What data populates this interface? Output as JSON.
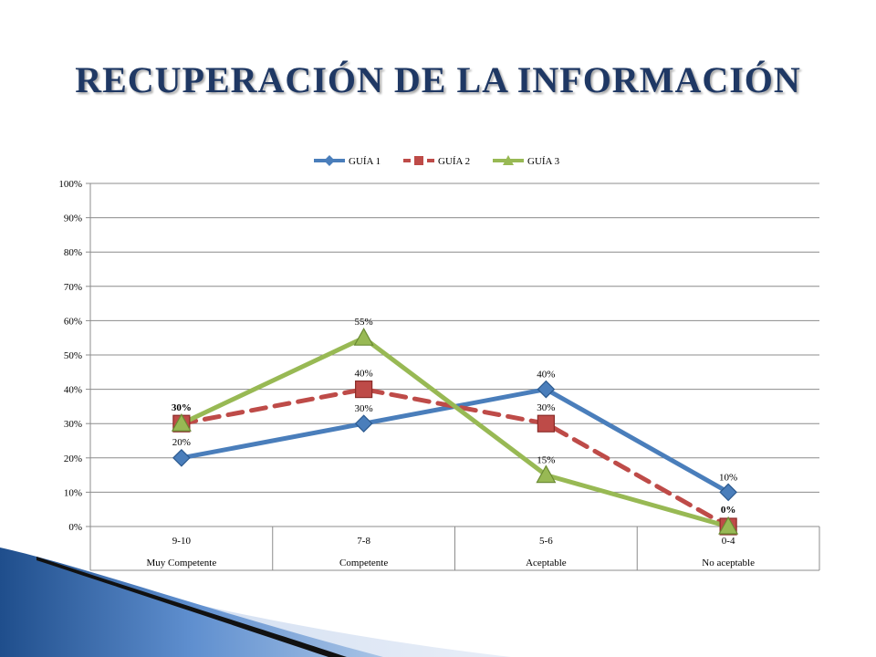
{
  "slide": {
    "title": "RECUPERACIÓN DE LA INFORMACIÓN"
  },
  "chart_data": {
    "type": "line",
    "title": "",
    "xlabel": "",
    "ylabel": "",
    "ylim": [
      0,
      100
    ],
    "y_ticks": [
      "0%",
      "10%",
      "20%",
      "30%",
      "40%",
      "50%",
      "60%",
      "70%",
      "80%",
      "90%",
      "100%"
    ],
    "categories": [
      "9-10",
      "7-8",
      "5-6",
      "0-4"
    ],
    "category_groups": [
      "Muy Competente",
      "Competente",
      "Aceptable",
      "No aceptable"
    ],
    "legend_position": "top",
    "grid": true,
    "series": [
      {
        "name": "GUÍA 1",
        "values": [
          20,
          30,
          40,
          10
        ],
        "labels": [
          "20%",
          "30%",
          "40%",
          "10%"
        ],
        "color": "#4a7ebb",
        "marker": "diamond",
        "dash": "solid"
      },
      {
        "name": "GUÍA 2",
        "values": [
          30,
          40,
          30,
          0
        ],
        "labels": [
          "30%",
          "40%",
          "30%",
          "0%"
        ],
        "color": "#be4b48",
        "marker": "square",
        "dash": "dashed"
      },
      {
        "name": "GUÍA 3",
        "values": [
          30,
          55,
          15,
          0
        ],
        "labels": [
          "30%",
          "55%",
          "15%",
          "0%"
        ],
        "color": "#98b954",
        "marker": "triangle",
        "dash": "solid"
      }
    ]
  }
}
